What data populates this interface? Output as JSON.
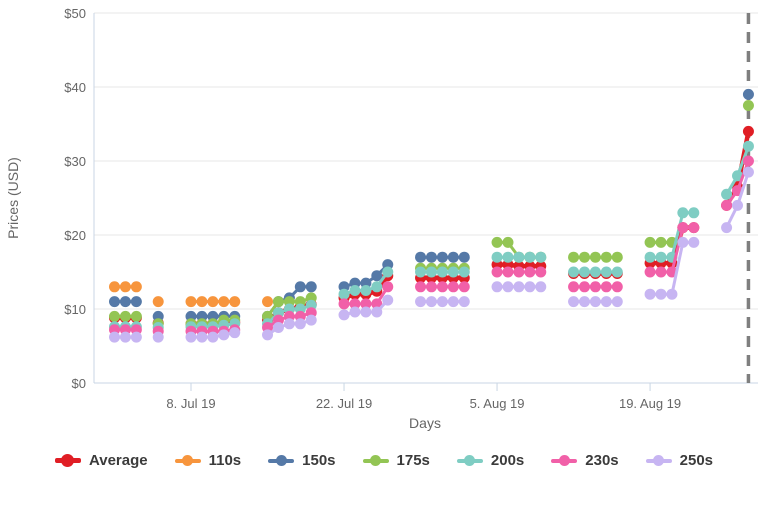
{
  "chart_data": {
    "type": "line",
    "title": "",
    "xlabel": "Days",
    "ylabel": "Prices (USD)",
    "ylim": [
      0,
      50
    ],
    "grid": true,
    "legend_position": "bottom",
    "ytick_values": [
      0,
      10,
      20,
      30,
      40,
      50
    ],
    "ytick_labels": [
      "$0",
      "$10",
      "$20",
      "$30",
      "$40",
      "$50"
    ],
    "xtick_labels": [
      "8. Jul 19",
      "22. Jul 19",
      "5. Aug 19",
      "19. Aug 19"
    ],
    "xtick_days": [
      7,
      21,
      35,
      49
    ],
    "dashed_cutoff_day": 58,
    "day_offsets": [
      0,
      1,
      2,
      4,
      7,
      8,
      9,
      10,
      11,
      14,
      15,
      16,
      17,
      18,
      21,
      22,
      23,
      24,
      25,
      28,
      29,
      30,
      31,
      32,
      35,
      36,
      37,
      38,
      39,
      42,
      43,
      44,
      45,
      46,
      49,
      50,
      51,
      52,
      53,
      56,
      57,
      58
    ],
    "series": [
      {
        "name": "Average",
        "color": "#e01e25",
        "line_width": 4.5,
        "values": [
          8.8,
          8.8,
          8.8,
          8.1,
          8.0,
          8.0,
          8.0,
          8.1,
          8.2,
          8.5,
          9.5,
          10,
          10.3,
          10.6,
          11.5,
          12,
          12,
          12.4,
          14.5,
          14.2,
          14.2,
          14.2,
          14.2,
          14.2,
          16,
          16,
          15.8,
          15.8,
          15.8,
          14.8,
          14.8,
          14.8,
          14.8,
          14.8,
          16.2,
          16.2,
          16.2,
          21,
          21,
          24,
          26.5,
          34
        ]
      },
      {
        "name": "110s",
        "color": "#f7953d",
        "line_width": 3,
        "values": [
          13,
          13,
          13,
          11,
          11,
          11,
          11,
          11,
          11,
          11,
          null,
          null,
          null,
          null,
          null,
          null,
          null,
          null,
          null,
          null,
          null,
          null,
          null,
          null,
          null,
          null,
          null,
          null,
          null,
          null,
          null,
          null,
          null,
          null,
          null,
          null,
          null,
          null,
          null,
          null,
          null,
          null
        ]
      },
      {
        "name": "150s",
        "color": "#5579a7",
        "line_width": 3,
        "values": [
          11,
          11,
          11,
          9,
          9,
          9,
          9,
          9,
          9,
          9,
          11,
          11.5,
          13,
          13,
          13,
          13.5,
          13.5,
          14.5,
          16,
          17,
          17,
          17,
          17,
          17,
          null,
          null,
          null,
          null,
          null,
          null,
          null,
          null,
          null,
          null,
          null,
          null,
          null,
          null,
          null,
          null,
          null,
          39
        ]
      },
      {
        "name": "175s",
        "color": "#93c554",
        "line_width": 3,
        "values": [
          9,
          9,
          9,
          8,
          8,
          8,
          8,
          8.5,
          8.5,
          9,
          11,
          11,
          11,
          11.5,
          null,
          null,
          null,
          null,
          null,
          15.5,
          15.5,
          15.5,
          15.5,
          15.5,
          19,
          19,
          17,
          17,
          17,
          17,
          17,
          17,
          17,
          17,
          19,
          19,
          19,
          null,
          null,
          null,
          null,
          37.5
        ]
      },
      {
        "name": "200s",
        "color": "#7fcdc3",
        "line_width": 3,
        "values": [
          7.6,
          7.6,
          7.6,
          7.5,
          7.6,
          7.6,
          7.6,
          7.8,
          8,
          8,
          9.5,
          10,
          10,
          10.5,
          12,
          12.5,
          12.5,
          13,
          15,
          15,
          15,
          15,
          15,
          15,
          17,
          17,
          17,
          17,
          17,
          15,
          15,
          15,
          15,
          15,
          17,
          17,
          17,
          23,
          23,
          25.5,
          28,
          32
        ]
      },
      {
        "name": "230s",
        "color": "#f160a8",
        "line_width": 3,
        "values": [
          7.2,
          7.2,
          7.2,
          7,
          7,
          7,
          7,
          7,
          7.2,
          7.5,
          8.5,
          9,
          9,
          9.5,
          10.7,
          10.7,
          10.7,
          10.7,
          13,
          13,
          13,
          13,
          13,
          13,
          15,
          15,
          15,
          15,
          15,
          13,
          13,
          13,
          13,
          13,
          15,
          15,
          15,
          21,
          21,
          24,
          26,
          30
        ]
      },
      {
        "name": "250s",
        "color": "#c7b5f2",
        "line_width": 3,
        "values": [
          6.2,
          6.2,
          6.2,
          6.2,
          6.2,
          6.2,
          6.2,
          6.5,
          6.8,
          6.5,
          7.5,
          8,
          8,
          8.5,
          9.2,
          9.6,
          9.6,
          9.6,
          11.2,
          11,
          11,
          11,
          11,
          11,
          13,
          13,
          13,
          13,
          13,
          11,
          11,
          11,
          11,
          11,
          12,
          12,
          12,
          19,
          19,
          21,
          24,
          28.5
        ]
      }
    ],
    "legend": [
      "Average",
      "110s",
      "150s",
      "175s",
      "200s",
      "230s",
      "250s"
    ]
  },
  "style": {
    "axis_line_color": "#c9d6e4",
    "gridline_color": "#e7e7e7",
    "dashed_line_color": "#7f7f7f",
    "tick_label_color": "#666666",
    "legend_text_color": "#3b3b3b"
  }
}
